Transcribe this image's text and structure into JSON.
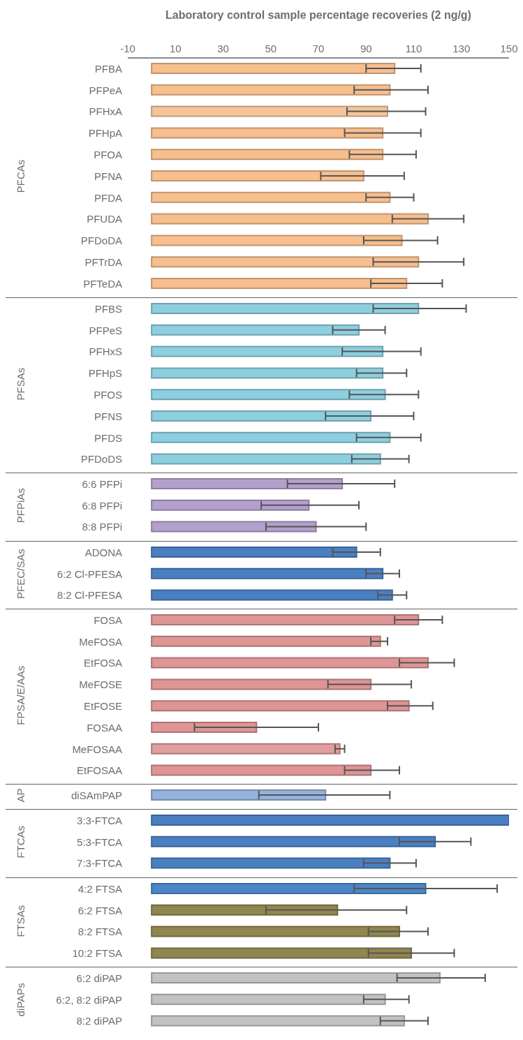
{
  "chart_data": [
    {
      "type": "bar",
      "orientation": "horizontal",
      "xlabel": "Laboratory control sample percentage recoveries (2 ng/g)",
      "ylabel": "PFCAs",
      "xlim": [
        -10,
        150
      ],
      "xticks": [
        -10,
        10,
        30,
        50,
        70,
        90,
        110,
        130,
        150
      ],
      "categories": [
        "PFBA",
        "PFPeA",
        "PFHxA",
        "PFHpA",
        "PFOA",
        "PFNA",
        "PFDA",
        "PFUDA",
        "PFDoDA",
        "PFTrDA",
        "PFTeDA"
      ],
      "values": [
        102,
        100,
        99,
        97,
        97,
        89,
        100,
        116,
        105,
        112,
        107
      ],
      "errors": [
        [
          90,
          113
        ],
        [
          85,
          116
        ],
        [
          82,
          115
        ],
        [
          81,
          113
        ],
        [
          83,
          111
        ],
        [
          71,
          106
        ],
        [
          90,
          110
        ],
        [
          101,
          131
        ],
        [
          89,
          120
        ],
        [
          93,
          131
        ],
        [
          92,
          122
        ]
      ],
      "colors": [
        "#f7be8e",
        "#f7be8e",
        "#f5c49b",
        "#f7be8e",
        "#f7be8e",
        "#f7be8e",
        "#f7be8e",
        "#f7be8e",
        "#f7be8e",
        "#f7be8e",
        "#f7be8e"
      ]
    },
    {
      "type": "bar",
      "orientation": "horizontal",
      "ylabel": "PFSAs",
      "xlim": [
        -10,
        150
      ],
      "tick_labels": "y",
      "categories": [
        "PFBS",
        "PFPeS",
        "PFHxS",
        "PFHpS",
        "PFOS",
        "PFNS",
        "PFDS",
        "PFDoDS"
      ],
      "values": [
        112,
        87,
        97,
        97,
        98,
        92,
        100,
        96
      ],
      "errors": [
        [
          93,
          132
        ],
        [
          76,
          98
        ],
        [
          80,
          113
        ],
        [
          86,
          107
        ],
        [
          83,
          112
        ],
        [
          73,
          110
        ],
        [
          86,
          113
        ],
        [
          84,
          108
        ]
      ],
      "colors": [
        "#8ecfdf",
        "#8ecfdf",
        "#8ecfdf",
        "#8ecfdf",
        "#8ecfdf",
        "#8ecfdf",
        "#8ecfdf",
        "#8ecfdf"
      ]
    },
    {
      "type": "bar",
      "orientation": "horizontal",
      "ylabel": "PFPiAs",
      "xlim": [
        -10,
        150
      ],
      "tick_labels": "y",
      "categories": [
        "6:6 PFPi",
        "6:8 PFPi",
        "8:8 PFPi"
      ],
      "values": [
        80,
        66,
        69
      ],
      "errors": [
        [
          57,
          102
        ],
        [
          46,
          87
        ],
        [
          48,
          90
        ]
      ],
      "colors": [
        "#b3a0cc",
        "#b3a0cc",
        "#b3a0cc"
      ]
    },
    {
      "type": "bar",
      "orientation": "horizontal",
      "ylabel": "PFEC/SAs",
      "xlim": [
        -10,
        150
      ],
      "tick_labels": "y",
      "categories": [
        "ADONA",
        "6:2 Cl-PFESA",
        "8:2 Cl-PFESA"
      ],
      "values": [
        86,
        97,
        101
      ],
      "errors": [
        [
          76,
          96
        ],
        [
          90,
          104
        ],
        [
          95,
          107
        ]
      ],
      "colors": [
        "#4a80c1",
        "#4a80c1",
        "#4a80c1"
      ]
    },
    {
      "type": "bar",
      "orientation": "horizontal",
      "ylabel": "FPSA/E/AAs",
      "xlim": [
        -10,
        150
      ],
      "tick_labels": "y",
      "categories": [
        "FOSA",
        "MeFOSA",
        "EtFOSA",
        "MeFOSE",
        "EtFOSE",
        "FOSAA",
        "MeFOSAA",
        "EtFOSAA"
      ],
      "values": [
        112,
        96,
        116,
        92,
        108,
        44,
        79,
        92
      ],
      "errors": [
        [
          102,
          122
        ],
        [
          92,
          99
        ],
        [
          104,
          127
        ],
        [
          74,
          109
        ],
        [
          99,
          118
        ],
        [
          18,
          70
        ],
        [
          77,
          81
        ],
        [
          81,
          104
        ]
      ],
      "colors": [
        "#dd9595",
        "#dd9595",
        "#dd9595",
        "#dd9595",
        "#dd9595",
        "#dd9595",
        "#e09e9e",
        "#dd9595"
      ]
    },
    {
      "type": "bar",
      "orientation": "horizontal",
      "ylabel": "AP",
      "xlim": [
        -10,
        150
      ],
      "tick_labels": "y",
      "categories": [
        "diSAmPAP"
      ],
      "values": [
        73
      ],
      "errors": [
        [
          45,
          100
        ]
      ],
      "colors": [
        "#95b2db"
      ]
    },
    {
      "type": "bar",
      "orientation": "horizontal",
      "ylabel": "FTCAs",
      "xlim": [
        -10,
        150
      ],
      "tick_labels": "y",
      "categories": [
        "3:3-FTCA",
        "5:3-FTCA",
        "7:3-FTCA"
      ],
      "values": [
        150,
        119,
        100
      ],
      "errors": [
        null,
        [
          104,
          134
        ],
        [
          89,
          111
        ]
      ],
      "colors": [
        "#4a80c1",
        "#4a80c1",
        "#4a80c1"
      ]
    },
    {
      "type": "bar",
      "orientation": "horizontal",
      "ylabel": "FTSAs",
      "xlim": [
        -10,
        150
      ],
      "tick_labels": "y",
      "categories": [
        "4:2 FTSA",
        "6:2 FTSA",
        "8:2 FTSA",
        "10:2 FTSA"
      ],
      "values": [
        115,
        78,
        104,
        109
      ],
      "errors": [
        [
          85,
          145
        ],
        [
          48,
          107
        ],
        [
          91,
          116
        ],
        [
          91,
          127
        ]
      ],
      "colors": [
        "#4a86c8",
        "#8f8650",
        "#8f8650",
        "#8f8650"
      ]
    },
    {
      "type": "bar",
      "orientation": "horizontal",
      "ylabel": "diPAPs",
      "xlim": [
        -10,
        150
      ],
      "tick_labels": "y",
      "categories": [
        "6:2 diPAP",
        "6:2, 8:2 diPAP",
        "8:2 diPAP"
      ],
      "values": [
        121,
        98,
        106
      ],
      "errors": [
        [
          103,
          140
        ],
        [
          89,
          108
        ],
        [
          96,
          116
        ]
      ],
      "colors": [
        "#c2c2c2",
        "#c2c2c2",
        "#c2c2c2"
      ]
    }
  ]
}
